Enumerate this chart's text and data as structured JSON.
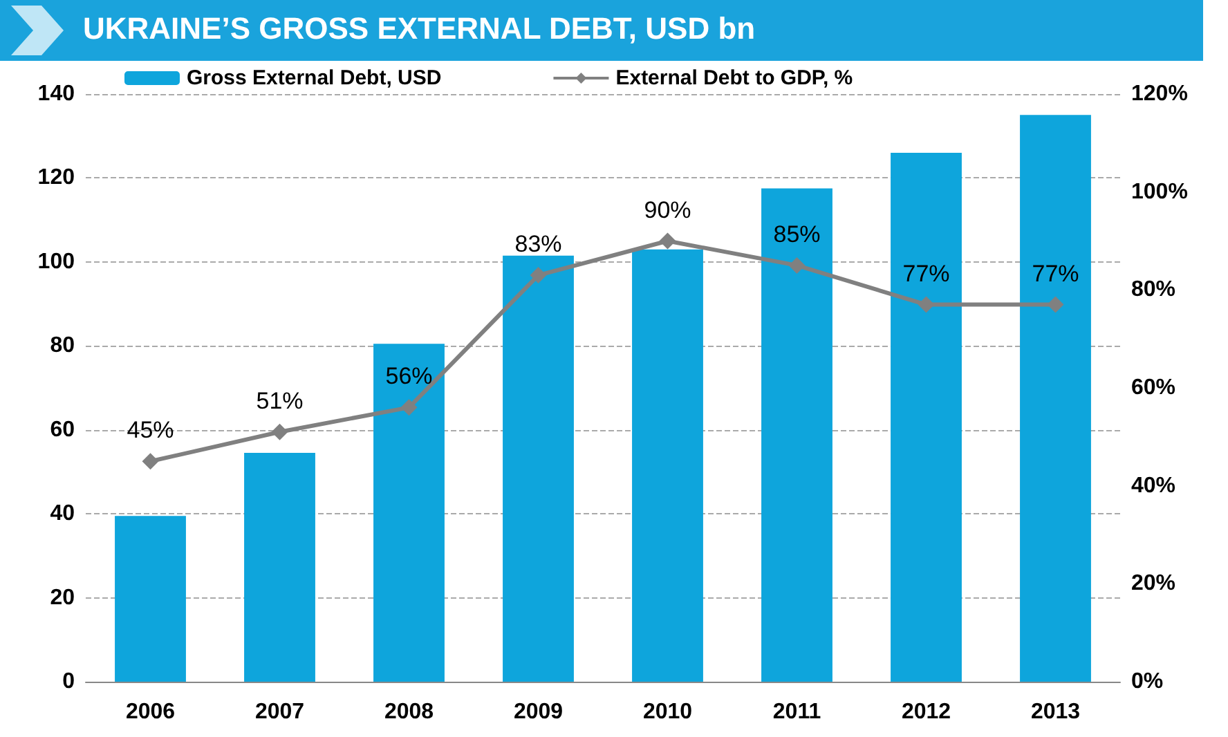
{
  "chart_data": {
    "type": "bar",
    "title": "UKRAINE’S GROSS EXTERNAL DEBT, USD bn",
    "categories": [
      "2006",
      "2007",
      "2008",
      "2009",
      "2010",
      "2011",
      "2012",
      "2013"
    ],
    "series": [
      {
        "name": "Gross External Debt, USD",
        "color": "#0ea5dc",
        "values": [
          39.5,
          54.5,
          80.5,
          101.5,
          103,
          117.5,
          126,
          135
        ]
      },
      {
        "name": "External Debt to GDP, %",
        "type": "line",
        "axis": "y2",
        "color": "#808080",
        "marker": "diamond",
        "values": [
          45,
          51,
          56,
          83,
          90,
          85,
          77,
          77
        ],
        "value_labels": [
          "45%",
          "51%",
          "56%",
          "83%",
          "90%",
          "85%",
          "77%",
          "77%"
        ]
      }
    ],
    "ylim": [
      0,
      140
    ],
    "yticks": [
      0,
      20,
      40,
      60,
      80,
      100,
      120,
      140
    ],
    "y2lim": [
      0,
      120
    ],
    "y2ticks": [
      {
        "value": 0,
        "label": "0%"
      },
      {
        "value": 20,
        "label": "20%"
      },
      {
        "value": 40,
        "label": "40%"
      },
      {
        "value": 60,
        "label": "60%"
      },
      {
        "value": 80,
        "label": "80%"
      },
      {
        "value": 100,
        "label": "100%"
      },
      {
        "value": 120,
        "label": "120%"
      }
    ],
    "grid": "y",
    "legend": "top left"
  }
}
